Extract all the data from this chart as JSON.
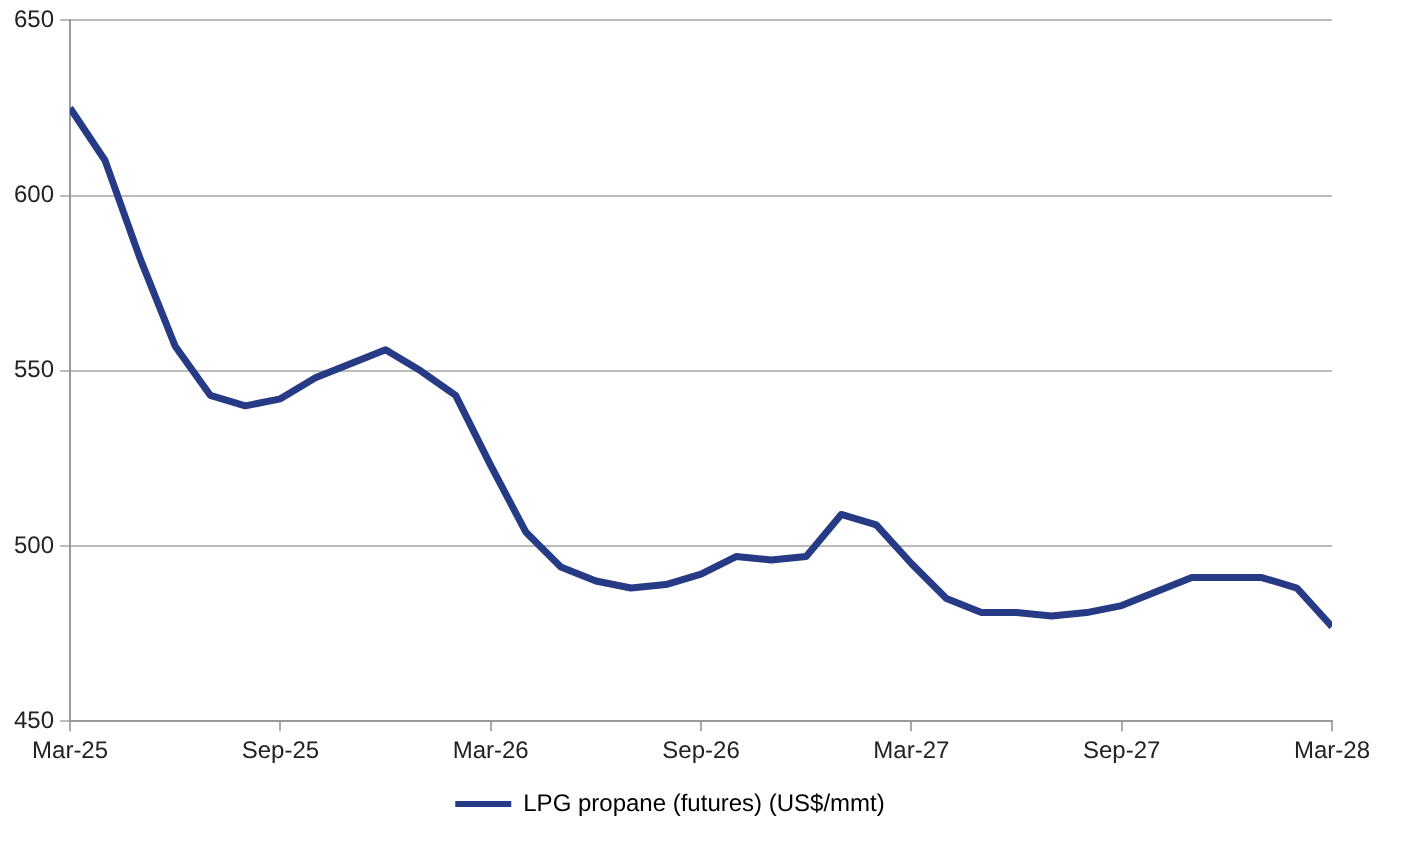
{
  "chart_data": {
    "type": "line",
    "x": [
      "2025-03",
      "2025-04",
      "2025-05",
      "2025-06",
      "2025-07",
      "2025-08",
      "2025-09",
      "2025-10",
      "2025-11",
      "2025-12",
      "2026-01",
      "2026-02",
      "2026-03",
      "2026-04",
      "2026-05",
      "2026-06",
      "2026-07",
      "2026-08",
      "2026-09",
      "2026-10",
      "2026-11",
      "2026-12",
      "2027-01",
      "2027-02",
      "2027-03",
      "2027-04",
      "2027-05",
      "2027-06",
      "2027-07",
      "2027-08",
      "2027-09",
      "2027-10",
      "2027-11",
      "2027-12",
      "2028-01",
      "2028-02",
      "2028-03"
    ],
    "series": [
      {
        "name": "LPG propane (futures) (US$/mmt)",
        "color": "#263a85",
        "values": [
          625,
          610,
          582,
          557,
          543,
          540,
          542,
          548,
          552,
          556,
          550,
          543,
          523,
          504,
          494,
          490,
          488,
          489,
          492,
          497,
          496,
          497,
          509,
          506,
          495,
          485,
          481,
          481,
          480,
          481,
          483,
          487,
          491,
          491,
          491,
          488,
          477
        ]
      }
    ],
    "xlim": [
      "2025-03",
      "2028-03"
    ],
    "xticks": [
      {
        "value": "2025-03",
        "label": "Mar-25"
      },
      {
        "value": "2025-09",
        "label": "Sep-25"
      },
      {
        "value": "2026-03",
        "label": "Mar-26"
      },
      {
        "value": "2026-09",
        "label": "Sep-26"
      },
      {
        "value": "2027-03",
        "label": "Mar-27"
      },
      {
        "value": "2027-09",
        "label": "Sep-27"
      },
      {
        "value": "2028-03",
        "label": "Mar-28"
      }
    ],
    "ylim": [
      450,
      650
    ],
    "yticks": [
      450,
      500,
      550,
      600,
      650
    ],
    "grid": "y",
    "legend": "bottom",
    "marker": "none",
    "line_style": "solid"
  }
}
